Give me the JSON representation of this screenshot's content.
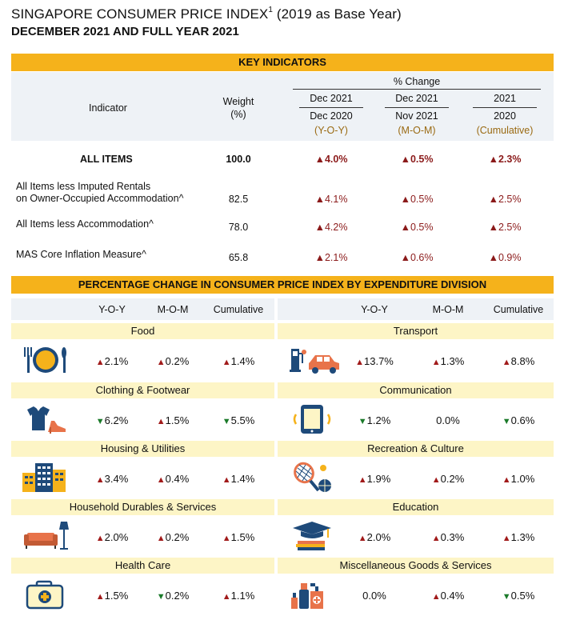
{
  "title": {
    "line1": "SINGAPORE CONSUMER PRICE INDEX",
    "sup": "1",
    "line1_suffix": " (2019 as Base Year)",
    "line2": "DECEMBER 2021 AND FULL YEAR 2021"
  },
  "key": {
    "bar": "KEY INDICATORS",
    "pct_change": "% Change",
    "indicator_hdr": "Indicator",
    "weight_hdr": "Weight",
    "weight_unit": "(%)",
    "col1": [
      "Dec 2021",
      "Dec 2020",
      "(Y-O-Y)"
    ],
    "col2": [
      "Dec 2021",
      "Nov 2021",
      "(M-O-M)"
    ],
    "col3": [
      "2021",
      "2020",
      "(Cumulative)"
    ],
    "rows": [
      {
        "name": "ALL ITEMS",
        "name2": "",
        "weight": "100.0",
        "yoy": "4.0%",
        "mom": "0.5%",
        "cum": "2.3%"
      },
      {
        "name": "All Items less Imputed Rentals",
        "name2": "on Owner-Occupied Accommodation^",
        "weight": "82.5",
        "yoy": "4.1%",
        "mom": "0.5%",
        "cum": "2.5%"
      },
      {
        "name": "All Items less Accommodation^",
        "name2": "",
        "weight": "78.0",
        "yoy": "4.2%",
        "mom": "0.5%",
        "cum": "2.5%"
      },
      {
        "name": "MAS Core Inflation Measure^",
        "name2": "",
        "weight": "65.8",
        "yoy": "2.1%",
        "mom": "0.6%",
        "cum": "0.9%"
      }
    ]
  },
  "divisions": {
    "bar": "PERCENTAGE CHANGE IN CONSUMER PRICE INDEX BY EXPENDITURE DIVISION",
    "hdr": [
      "Y-O-Y",
      "M-O-M",
      "Cumulative"
    ],
    "left": [
      {
        "name": "Food",
        "icon": "food-plate-icon",
        "yoy": "2.1%",
        "yoy_dir": "up",
        "mom": "0.2%",
        "mom_dir": "up",
        "cum": "1.4%",
        "cum_dir": "up"
      },
      {
        "name": "Clothing & Footwear",
        "icon": "clothing-icon",
        "yoy": "6.2%",
        "yoy_dir": "down",
        "mom": "1.5%",
        "mom_dir": "up",
        "cum": "5.5%",
        "cum_dir": "down"
      },
      {
        "name": "Housing & Utilities",
        "icon": "building-icon",
        "yoy": "3.4%",
        "yoy_dir": "up",
        "mom": "0.4%",
        "mom_dir": "up",
        "cum": "1.4%",
        "cum_dir": "up"
      },
      {
        "name": "Household Durables & Services",
        "icon": "sofa-lamp-icon",
        "yoy": "2.0%",
        "yoy_dir": "up",
        "mom": "0.2%",
        "mom_dir": "up",
        "cum": "1.5%",
        "cum_dir": "up"
      },
      {
        "name": "Health Care",
        "icon": "medical-kit-icon",
        "yoy": "1.5%",
        "yoy_dir": "up",
        "mom": "0.2%",
        "mom_dir": "down",
        "cum": "1.1%",
        "cum_dir": "up"
      }
    ],
    "right": [
      {
        "name": "Transport",
        "icon": "car-fuel-icon",
        "yoy": "13.7%",
        "yoy_dir": "up",
        "mom": "1.3%",
        "mom_dir": "up",
        "cum": "8.8%",
        "cum_dir": "up"
      },
      {
        "name": "Communication",
        "icon": "smartphone-icon",
        "yoy": "1.2%",
        "yoy_dir": "down",
        "mom": "0.0%",
        "mom_dir": "none",
        "cum": "0.6%",
        "cum_dir": "down"
      },
      {
        "name": "Recreation & Culture",
        "icon": "racket-ball-icon",
        "yoy": "1.9%",
        "yoy_dir": "up",
        "mom": "0.2%",
        "mom_dir": "up",
        "cum": "1.0%",
        "cum_dir": "up"
      },
      {
        "name": "Education",
        "icon": "graduation-books-icon",
        "yoy": "2.0%",
        "yoy_dir": "up",
        "mom": "0.3%",
        "mom_dir": "up",
        "cum": "1.3%",
        "cum_dir": "up"
      },
      {
        "name": "Miscellaneous Goods & Services",
        "icon": "cosmetics-icon",
        "yoy": "0.0%",
        "yoy_dir": "none",
        "mom": "0.4%",
        "mom_dir": "up",
        "cum": "0.5%",
        "cum_dir": "down"
      }
    ]
  },
  "colors": {
    "bar": "#f5b21b",
    "category_band": "#fdf5c6",
    "up": "#a11a1a",
    "down": "#1b7a2a"
  }
}
